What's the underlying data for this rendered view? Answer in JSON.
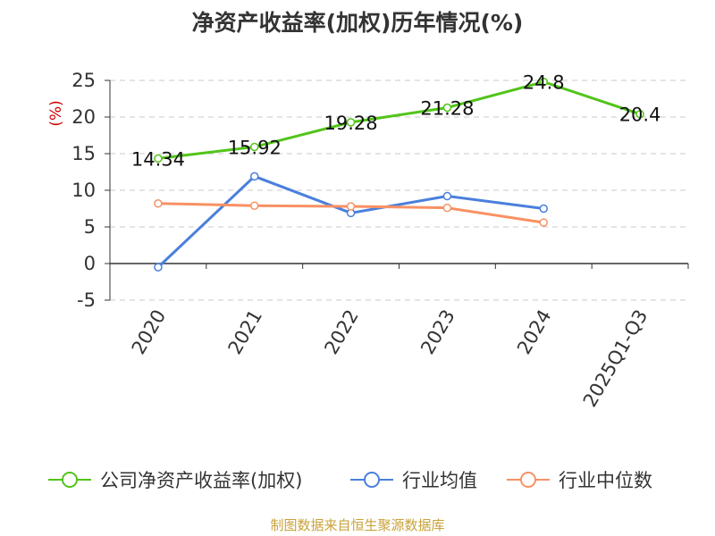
{
  "chart_data": {
    "type": "line",
    "title": "净资产收益率(加权)历年情况(%)",
    "ylabel": "(%)",
    "xlabel": "",
    "ylim": [
      -5,
      25
    ],
    "yticks": [
      -5,
      0,
      5,
      10,
      15,
      20,
      25
    ],
    "categories": [
      "2020",
      "2021",
      "2022",
      "2023",
      "2024",
      "2025Q1-Q3"
    ],
    "series": [
      {
        "name": "公司净资产收益率(加权)",
        "color": "#52c41a",
        "values": [
          14.34,
          15.92,
          19.28,
          21.28,
          24.8,
          20.4
        ],
        "labels": [
          "14.34",
          "15.92",
          "19.28",
          "21.28",
          "24.8",
          "20.4"
        ]
      },
      {
        "name": "行业均值",
        "color": "#4a7fdc",
        "values": [
          -0.5,
          11.9,
          6.9,
          9.2,
          7.5,
          null
        ]
      },
      {
        "name": "行业中位数",
        "color": "#f89164",
        "values": [
          8.2,
          7.9,
          7.8,
          7.6,
          5.6,
          null
        ]
      }
    ],
    "grid": true,
    "legend_position": "bottom"
  },
  "footer": {
    "source": "制图数据来自恒生聚源数据库"
  }
}
